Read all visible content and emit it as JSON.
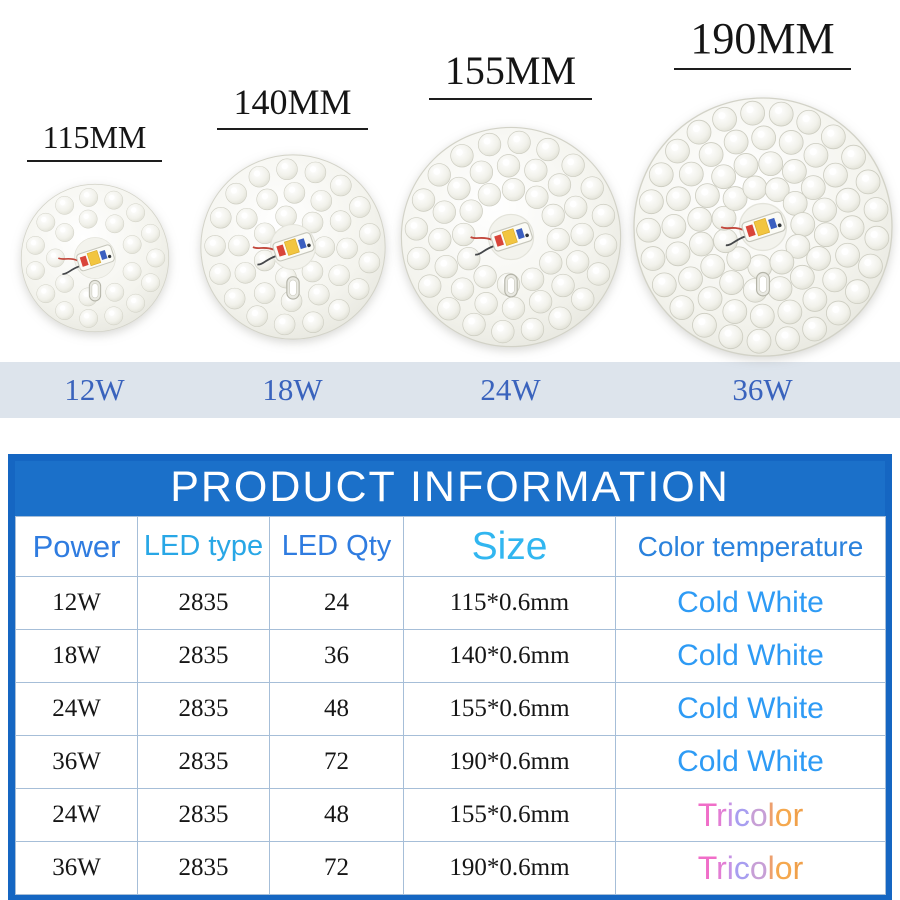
{
  "hero": {
    "modules": [
      {
        "diameter": "115MM",
        "power": "12W"
      },
      {
        "diameter": "140MM",
        "power": "18W"
      },
      {
        "diameter": "155MM",
        "power": "24W"
      },
      {
        "diameter": "190MM",
        "power": "36W"
      }
    ]
  },
  "table": {
    "title": "PRODUCT INFORMATION",
    "headers": [
      "Power",
      "LED type",
      "LED Qty",
      "Size",
      "Color temperature"
    ],
    "rows": [
      {
        "power": "12W",
        "led_type": "2835",
        "led_qty": "24",
        "size": "115*0.6mm",
        "color_temp": "Cold White",
        "temp_style": "cold"
      },
      {
        "power": "18W",
        "led_type": "2835",
        "led_qty": "36",
        "size": "140*0.6mm",
        "color_temp": "Cold White",
        "temp_style": "cold"
      },
      {
        "power": "24W",
        "led_type": "2835",
        "led_qty": "48",
        "size": "155*0.6mm",
        "color_temp": "Cold White",
        "temp_style": "cold"
      },
      {
        "power": "36W",
        "led_type": "2835",
        "led_qty": "72",
        "size": "190*0.6mm",
        "color_temp": "Cold White",
        "temp_style": "cold"
      },
      {
        "power": "24W",
        "led_type": "2835",
        "led_qty": "48",
        "size": "155*0.6mm",
        "color_temp": "Tricolor",
        "temp_style": "tricolor"
      },
      {
        "power": "36W",
        "led_type": "2835",
        "led_qty": "72",
        "size": "190*0.6mm",
        "color_temp": "Tricolor",
        "temp_style": "tricolor"
      }
    ]
  },
  "colors": {
    "table_border_blue": "#1566c2",
    "title_bar_blue": "#1b70c9",
    "header_blue": "#2f7ce0",
    "header_cyan": "#31b6f0",
    "cold_white_text": "#2e9bf5",
    "watt_text": "#3a63bd",
    "band_bg": "#dde4ec",
    "tricolor_letters": [
      "#f06ec8",
      "#e27dd4",
      "#c693e4",
      "#a89ef0",
      "#c79fd6",
      "#eda06e",
      "#f5a84e",
      "#f0a04a"
    ]
  }
}
